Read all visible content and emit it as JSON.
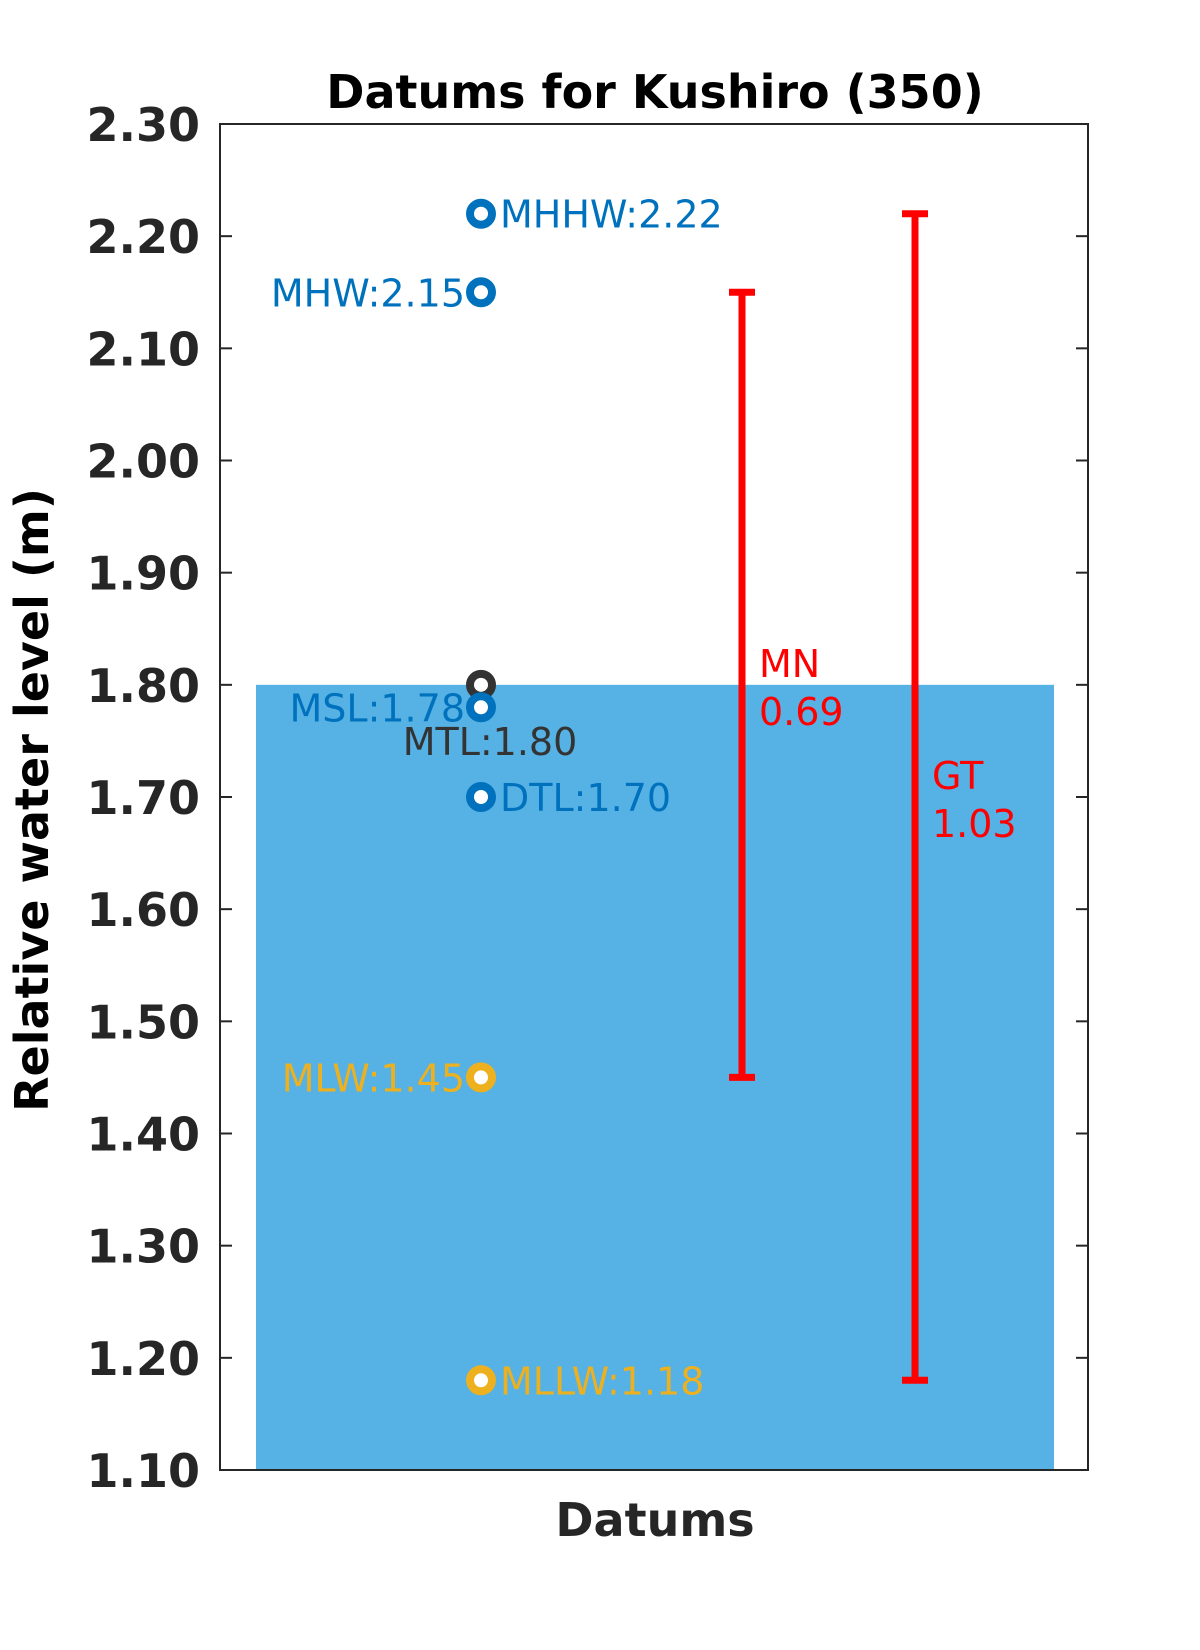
{
  "chart_data": {
    "type": "scatter",
    "title": "Datums for Kushiro (350)",
    "xlabel": "Datums",
    "ylabel": "Relative water level (m)",
    "ylim": [
      1.1,
      2.3
    ],
    "yticks": [
      "1.10",
      "1.20",
      "1.30",
      "1.40",
      "1.50",
      "1.60",
      "1.70",
      "1.80",
      "1.90",
      "2.00",
      "2.10",
      "2.20",
      "2.30"
    ],
    "grid": false,
    "background_bar": {
      "top": 1.8,
      "color": "#56B1E4"
    },
    "points": [
      {
        "name": "MHHW",
        "value": 2.22,
        "label": "MHHW:2.22",
        "color": "#0072BD",
        "label_side": "right",
        "label_dy": 0
      },
      {
        "name": "MHW",
        "value": 2.15,
        "label": "MHW:2.15",
        "color": "#0072BD",
        "label_side": "left",
        "label_dy": 0
      },
      {
        "name": "MTL",
        "value": 1.8,
        "label": "MTL:1.80",
        "color": "#333333",
        "label_side": "below",
        "label_dy": 0
      },
      {
        "name": "MSL",
        "value": 1.78,
        "label": "MSL:1.78",
        "color": "#0072BD",
        "label_side": "left",
        "label_dy": 0
      },
      {
        "name": "DTL",
        "value": 1.7,
        "label": "DTL:1.70",
        "color": "#0072BD",
        "label_side": "right",
        "label_dy": 0
      },
      {
        "name": "MLW",
        "value": 1.45,
        "label": "MLW:1.45",
        "color": "#EDB120",
        "label_side": "left",
        "label_dy": 0
      },
      {
        "name": "MLLW",
        "value": 1.18,
        "label": "MLLW:1.18",
        "color": "#EDB120",
        "label_side": "right",
        "label_dy": 0
      }
    ],
    "ranges": [
      {
        "name": "MN",
        "from": 1.45,
        "to": 2.15,
        "label_line1": "MN",
        "label_line2": "0.69",
        "color": "#FF0000"
      },
      {
        "name": "GT",
        "from": 1.18,
        "to": 2.22,
        "label_line1": "GT",
        "label_line2": "1.03",
        "color": "#FF0000"
      }
    ]
  }
}
